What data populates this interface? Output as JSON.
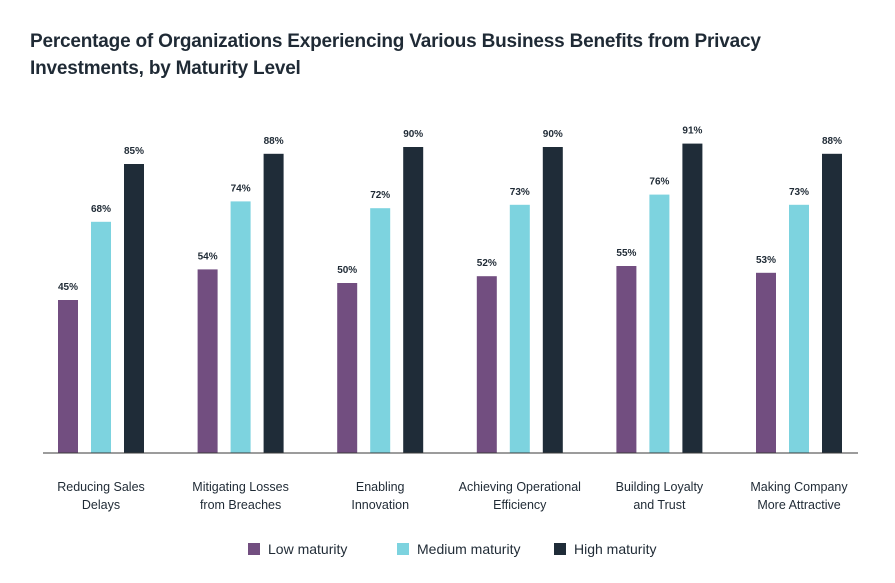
{
  "chart_data": {
    "type": "bar",
    "title": "Percentage of Organizations Experiencing Various Business Benefits from Privacy Investments, by Maturity Level",
    "categories": [
      [
        "Reducing Sales",
        "Delays"
      ],
      [
        "Mitigating Losses",
        "from Breaches"
      ],
      [
        "Enabling",
        "Innovation"
      ],
      [
        "Achieving Operational",
        "Efficiency"
      ],
      [
        "Building Loyalty",
        "and Trust"
      ],
      [
        "Making Company",
        "More Attractive"
      ]
    ],
    "series": [
      {
        "name": "Low maturity",
        "color": "#724e80",
        "values": [
          45,
          54,
          50,
          52,
          55,
          53
        ]
      },
      {
        "name": "Medium maturity",
        "color": "#7dd3df",
        "values": [
          68,
          74,
          72,
          73,
          76,
          73
        ]
      },
      {
        "name": "High maturity",
        "color": "#1f2c38",
        "values": [
          85,
          88,
          90,
          90,
          91,
          88
        ]
      }
    ],
    "value_suffix": "%",
    "ylim": [
      0,
      100
    ],
    "grid": false,
    "legend_position": "bottom-center"
  }
}
